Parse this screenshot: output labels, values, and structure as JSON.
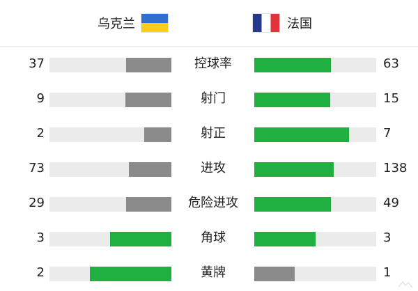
{
  "header": {
    "home_team": "乌克兰",
    "away_team": "法国"
  },
  "colors": {
    "leader_bar": "#1fb041",
    "trailer_bar": "#8a8a8a",
    "track": "#ebebeb"
  },
  "stats": [
    {
      "label": "控球率",
      "home": "37",
      "away": "63",
      "home_fill": 0.37,
      "away_fill": 0.63,
      "leader": "away"
    },
    {
      "label": "射门",
      "home": "9",
      "away": "15",
      "home_fill": 0.375,
      "away_fill": 0.625,
      "leader": "away"
    },
    {
      "label": "射正",
      "home": "2",
      "away": "7",
      "home_fill": 0.222,
      "away_fill": 0.778,
      "leader": "away"
    },
    {
      "label": "进攻",
      "home": "73",
      "away": "138",
      "home_fill": 0.346,
      "away_fill": 0.654,
      "leader": "away"
    },
    {
      "label": "危险进攻",
      "home": "29",
      "away": "49",
      "home_fill": 0.372,
      "away_fill": 0.628,
      "leader": "away"
    },
    {
      "label": "角球",
      "home": "3",
      "away": "3",
      "home_fill": 0.5,
      "away_fill": 0.5,
      "leader": "both"
    },
    {
      "label": "黄牌",
      "home": "2",
      "away": "1",
      "home_fill": 0.667,
      "away_fill": 0.333,
      "leader": "home"
    }
  ]
}
